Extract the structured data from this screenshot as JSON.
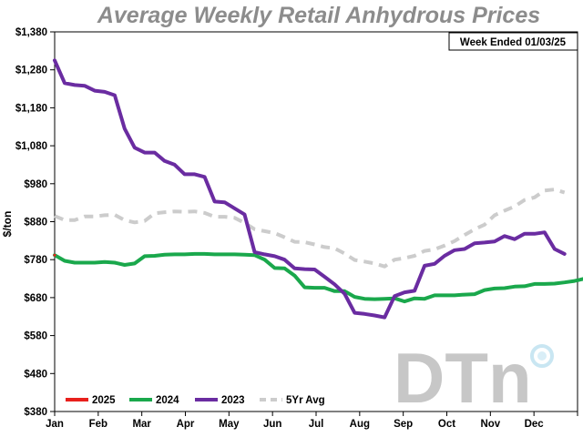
{
  "chart_data": {
    "type": "line",
    "title": "Average Weekly Retail Anhydrous Prices",
    "annotation": "Week Ended 01/03/25",
    "xlabel": "",
    "ylabel": "$/ton",
    "ylim": [
      380,
      1380
    ],
    "y_ticks": [
      380,
      480,
      580,
      680,
      780,
      880,
      980,
      1080,
      1180,
      1280,
      1380
    ],
    "y_tick_labels": [
      "$380",
      "$480",
      "$580",
      "$680",
      "$780",
      "$880",
      "$980",
      "$1,080",
      "$1,180",
      "$1,280",
      "$1,380"
    ],
    "x_tick_labels": [
      "Jan",
      "Feb",
      "Mar",
      "Apr",
      "May",
      "Jun",
      "Jul",
      "Aug",
      "Sep",
      "Oct",
      "Nov",
      "Dec"
    ],
    "x_unit": "week of year",
    "xlim": [
      1,
      52
    ],
    "grid": false,
    "legend_position": "bottom-left",
    "series": [
      {
        "name": "2025",
        "color": "#e8201c",
        "dashed": false,
        "points": [
          [
            1,
            792
          ]
        ]
      },
      {
        "name": "2024",
        "color": "#1aa84c",
        "dashed": false,
        "points": [
          [
            1,
            792
          ],
          [
            2,
            777
          ],
          [
            3,
            772
          ],
          [
            4,
            772
          ],
          [
            5,
            772
          ],
          [
            6,
            774
          ],
          [
            7,
            772
          ],
          [
            8,
            766
          ],
          [
            9,
            770
          ],
          [
            10,
            789
          ],
          [
            11,
            790
          ],
          [
            12,
            793
          ],
          [
            13,
            794
          ],
          [
            14,
            794
          ],
          [
            15,
            795
          ],
          [
            16,
            795
          ],
          [
            17,
            794
          ],
          [
            18,
            794
          ],
          [
            19,
            794
          ],
          [
            20,
            793
          ],
          [
            21,
            792
          ],
          [
            22,
            780
          ],
          [
            23,
            758
          ],
          [
            24,
            757
          ],
          [
            25,
            738
          ],
          [
            26,
            707
          ],
          [
            27,
            706
          ],
          [
            28,
            706
          ],
          [
            29,
            697
          ],
          [
            30,
            697
          ],
          [
            31,
            682
          ],
          [
            32,
            677
          ],
          [
            33,
            676
          ],
          [
            34,
            677
          ],
          [
            35,
            678
          ],
          [
            36,
            670
          ],
          [
            37,
            678
          ],
          [
            38,
            677
          ],
          [
            39,
            686
          ],
          [
            40,
            686
          ],
          [
            41,
            686
          ],
          [
            42,
            688
          ],
          [
            43,
            689
          ],
          [
            44,
            700
          ],
          [
            45,
            704
          ],
          [
            46,
            705
          ],
          [
            47,
            709
          ],
          [
            48,
            710
          ],
          [
            49,
            716
          ],
          [
            50,
            716
          ],
          [
            51,
            717
          ],
          [
            52,
            720
          ],
          [
            53,
            724
          ],
          [
            54,
            730
          ]
        ]
      },
      {
        "name": "2023",
        "color": "#6a2ca1",
        "dashed": false,
        "points": [
          [
            1,
            1305
          ],
          [
            2,
            1245
          ],
          [
            3,
            1240
          ],
          [
            4,
            1238
          ],
          [
            5,
            1225
          ],
          [
            6,
            1222
          ],
          [
            7,
            1213
          ],
          [
            8,
            1125
          ],
          [
            9,
            1075
          ],
          [
            10,
            1062
          ],
          [
            11,
            1062
          ],
          [
            12,
            1040
          ],
          [
            13,
            1030
          ],
          [
            14,
            1005
          ],
          [
            15,
            1005
          ],
          [
            16,
            998
          ],
          [
            17,
            933
          ],
          [
            18,
            931
          ],
          [
            19,
            915
          ],
          [
            20,
            899
          ],
          [
            21,
            800
          ],
          [
            22,
            794
          ],
          [
            23,
            789
          ],
          [
            24,
            780
          ],
          [
            25,
            757
          ],
          [
            26,
            755
          ],
          [
            27,
            754
          ],
          [
            28,
            735
          ],
          [
            29,
            715
          ],
          [
            30,
            690
          ],
          [
            31,
            640
          ],
          [
            32,
            637
          ],
          [
            33,
            633
          ],
          [
            34,
            628
          ],
          [
            35,
            684
          ],
          [
            36,
            694
          ],
          [
            37,
            698
          ],
          [
            38,
            764
          ],
          [
            39,
            769
          ],
          [
            40,
            790
          ],
          [
            41,
            805
          ],
          [
            42,
            808
          ],
          [
            43,
            823
          ],
          [
            44,
            825
          ],
          [
            45,
            828
          ],
          [
            46,
            842
          ],
          [
            47,
            834
          ],
          [
            48,
            848
          ],
          [
            49,
            848
          ],
          [
            50,
            852
          ],
          [
            51,
            808
          ],
          [
            52,
            795
          ]
        ]
      },
      {
        "name": "5Yr Avg",
        "color": "#cccccc",
        "dashed": true,
        "points": [
          [
            1,
            895
          ],
          [
            2,
            884
          ],
          [
            3,
            884
          ],
          [
            4,
            894
          ],
          [
            5,
            894
          ],
          [
            6,
            897
          ],
          [
            7,
            898
          ],
          [
            8,
            884
          ],
          [
            9,
            878
          ],
          [
            10,
            882
          ],
          [
            11,
            902
          ],
          [
            12,
            905
          ],
          [
            13,
            907
          ],
          [
            14,
            906
          ],
          [
            15,
            907
          ],
          [
            16,
            903
          ],
          [
            17,
            893
          ],
          [
            18,
            893
          ],
          [
            19,
            890
          ],
          [
            20,
            877
          ],
          [
            21,
            860
          ],
          [
            22,
            855
          ],
          [
            23,
            850
          ],
          [
            24,
            839
          ],
          [
            25,
            827
          ],
          [
            26,
            826
          ],
          [
            27,
            820
          ],
          [
            28,
            813
          ],
          [
            29,
            810
          ],
          [
            30,
            796
          ],
          [
            31,
            779
          ],
          [
            32,
            775
          ],
          [
            33,
            770
          ],
          [
            34,
            762
          ],
          [
            35,
            780
          ],
          [
            36,
            784
          ],
          [
            37,
            790
          ],
          [
            38,
            803
          ],
          [
            39,
            807
          ],
          [
            40,
            817
          ],
          [
            41,
            829
          ],
          [
            42,
            845
          ],
          [
            43,
            860
          ],
          [
            44,
            872
          ],
          [
            45,
            897
          ],
          [
            46,
            909
          ],
          [
            47,
            920
          ],
          [
            48,
            937
          ],
          [
            49,
            944
          ],
          [
            50,
            962
          ],
          [
            51,
            965
          ],
          [
            52,
            957
          ]
        ]
      }
    ]
  }
}
